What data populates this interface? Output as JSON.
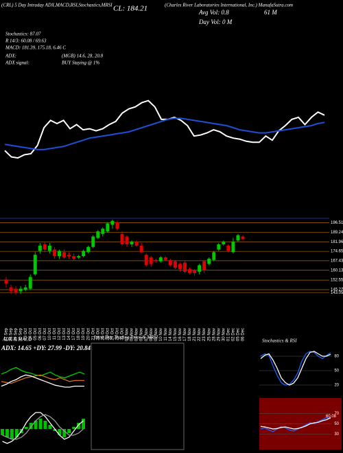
{
  "header": {
    "left": "(CRL) 5 Day Intraday ADX,MACD,RSI,Stochastics,MRSI",
    "close": "CL: 184.21",
    "company": "(Charles River Laboratories International, Inc.) ManafaSutra.com",
    "avg_vol": "Avg Vol: 0.8",
    "avg_vol_unit": "61 M",
    "day_vol": "Day Vol: 0  M",
    "stoch": "Stochastics: 87.07",
    "rsi": "R 14/3: 60.08 / 69.63",
    "macd": "MACD: 181.39, 175.18, 6.46  C",
    "adx": "ADX:",
    "mgb": "(MGB) 14.6, 28, 20.8",
    "adx_signal": "ADX  signal:",
    "signal": "BUY Staying @ 1%"
  },
  "chart_data": [
    {
      "type": "line",
      "ylim": [
        120,
        255
      ],
      "series": [
        {
          "color": "#ffffff",
          "values": [
            150,
            144,
            143,
            146,
            147,
            155,
            172,
            179,
            176,
            179,
            171,
            175,
            170,
            171,
            169,
            171,
            175,
            178,
            186,
            190,
            192,
            196,
            198,
            192,
            180,
            180,
            182,
            179,
            174,
            164,
            165,
            167,
            170,
            168,
            164,
            162,
            161,
            159,
            158,
            158,
            164,
            160,
            169,
            174,
            180,
            182,
            175,
            182,
            187,
            184
          ]
        },
        {
          "color": "#1f4fd8",
          "values": [
            156,
            155,
            154,
            153,
            152,
            151,
            151,
            152,
            153,
            154,
            156,
            158,
            160,
            162,
            163,
            164,
            165,
            166,
            167,
            168,
            170,
            172,
            174,
            176,
            178,
            180,
            181,
            181,
            180,
            179,
            178,
            177,
            176,
            175,
            174,
            172,
            170,
            169,
            168,
            167,
            167,
            168,
            169,
            170,
            171,
            172,
            173,
            174,
            176,
            177
          ]
        }
      ]
    },
    {
      "type": "candlestick",
      "ylim": [
        140,
        200
      ],
      "yticks": [
        196.51,
        189.24,
        181.96,
        174.65,
        167.43,
        160.13,
        152.55,
        145.27,
        143.05
      ],
      "up_color": "#00c800",
      "down_color": "#e00000",
      "grid_color": "#b06a00",
      "categories": [
        "27 Sep",
        "28 Sep",
        "29 Sep",
        "30 Sep",
        "03 Oct",
        "04 Oct",
        "05 Oct",
        "06 Oct",
        "07 Oct",
        "10 Oct",
        "11 Oct",
        "12 Oct",
        "13 Oct",
        "14 Oct",
        "17 Oct",
        "18 Oct",
        "19 Oct",
        "20 Oct",
        "21 Oct",
        "24 Oct",
        "25 Oct",
        "26 Oct",
        "27 Oct",
        "28 Oct",
        "31 Oct",
        "01 Nov",
        "02 Nov",
        "03 Nov",
        "04 Nov",
        "07 Nov",
        "08 Nov",
        "09 Nov",
        "10 Nov",
        "11 Nov",
        "14 Nov",
        "15 Nov",
        "16 Nov",
        "17 Nov",
        "18 Nov",
        "21 Nov",
        "22 Nov",
        "23 Nov",
        "25 Nov",
        "28 Nov",
        "29 Nov",
        "30 Nov",
        "01 Dec",
        "02 Dec",
        "05 Dec",
        "06 Dec"
      ],
      "open": [
        153,
        147,
        146,
        144,
        145,
        146,
        157,
        175,
        180,
        175,
        176,
        171,
        174,
        172,
        171,
        170,
        171,
        174,
        178,
        185,
        188,
        190,
        195,
        197,
        188,
        186,
        180,
        182,
        179,
        172,
        170,
        168,
        167,
        170,
        168,
        167,
        165,
        166,
        161,
        160,
        159,
        167,
        165,
        168,
        176,
        180,
        179,
        174,
        183,
        186
      ],
      "close": [
        150,
        144,
        143,
        146,
        147,
        155,
        172,
        179,
        176,
        179,
        171,
        175,
        170,
        171,
        169,
        171,
        175,
        178,
        186,
        190,
        192,
        196,
        198,
        192,
        180,
        180,
        182,
        179,
        174,
        164,
        165,
        167,
        170,
        168,
        164,
        162,
        161,
        159,
        158,
        158,
        164,
        160,
        169,
        174,
        180,
        182,
        175,
        182,
        187,
        184
      ],
      "high": [
        155,
        149,
        148,
        148,
        149,
        157,
        174,
        181,
        182,
        181,
        178,
        176,
        176,
        174,
        173,
        172,
        176,
        179,
        187,
        191,
        193,
        197,
        199,
        198,
        190,
        187,
        183,
        183,
        181,
        173,
        171,
        169,
        171,
        171,
        169,
        168,
        166,
        167,
        162,
        161,
        165,
        168,
        170,
        175,
        181,
        183,
        180,
        185,
        188,
        187
      ],
      "low": [
        147,
        142,
        141.5,
        142,
        144,
        145,
        156,
        173,
        174,
        173,
        169,
        169,
        169,
        169,
        168,
        169,
        170,
        173,
        177,
        184,
        186,
        189,
        192,
        191,
        179,
        178,
        178,
        178,
        173,
        163,
        163,
        166,
        166,
        167,
        163,
        161,
        159,
        158,
        157,
        156,
        157,
        158,
        164,
        167,
        175,
        179,
        174,
        173,
        182,
        183
      ]
    },
    {
      "type": "line",
      "title": "ADX  & MACD",
      "subtitle": "ADX: 14.65 +DY: 27.99 -DY: 20.84",
      "ylim": [
        0,
        50
      ],
      "series": [
        {
          "color": "#00d000",
          "values": [
            28,
            30,
            33,
            35,
            32,
            30,
            29,
            27,
            26,
            28,
            30,
            27,
            25,
            24,
            26,
            28,
            30,
            28
          ]
        },
        {
          "color": "#d07020",
          "values": [
            20,
            19,
            18,
            20,
            22,
            24,
            25,
            26,
            27,
            25,
            23,
            22,
            24,
            22,
            20,
            21,
            21,
            21
          ]
        },
        {
          "color": "#ffffff",
          "values": [
            15,
            17,
            20,
            22,
            25,
            27,
            26,
            24,
            22,
            20,
            18,
            16,
            15,
            14,
            14,
            15,
            15,
            15
          ]
        }
      ]
    },
    {
      "type": "macd",
      "ylim": [
        -10,
        10
      ],
      "bar_color": "#00c000",
      "values": [
        -3,
        -4,
        -5,
        -4,
        -2,
        1,
        3,
        4,
        5,
        4,
        2,
        -1,
        -3,
        -4,
        -2,
        1,
        3,
        5
      ],
      "series": [
        {
          "color": "#ffffff",
          "values": [
            -6,
            -7,
            -6,
            -4,
            -1,
            3,
            6,
            8,
            8,
            6,
            3,
            0,
            -3,
            -5,
            -4,
            -1,
            2,
            4
          ]
        },
        {
          "color": "#999999",
          "values": [
            -3,
            -4,
            -5,
            -5,
            -4,
            -2,
            1,
            4,
            6,
            7,
            6,
            4,
            1,
            -1,
            -3,
            -3,
            -2,
            0
          ]
        }
      ]
    },
    {
      "type": "line",
      "title": "Intra Day Trading Price & MRSI",
      "ylim": [
        0,
        100
      ],
      "series": []
    },
    {
      "type": "line",
      "title": "Stochastics & RSI",
      "ylim": [
        0,
        100
      ],
      "yticks": [
        80,
        50,
        20
      ],
      "series": [
        {
          "color": "#1f5fff",
          "values": [
            80,
            85,
            82,
            60,
            40,
            25,
            20,
            22,
            30,
            45,
            70,
            85,
            90,
            88,
            80,
            75,
            82,
            87
          ]
        },
        {
          "color": "#ffffff",
          "values": [
            75,
            82,
            85,
            72,
            55,
            35,
            25,
            20,
            24,
            35,
            55,
            75,
            88,
            90,
            85,
            80,
            80,
            84
          ]
        }
      ]
    },
    {
      "type": "line",
      "background": "#7a0000",
      "ylim": [
        0,
        100
      ],
      "yticks": [
        70,
        50,
        30
      ],
      "annotations": [
        "60.08"
      ],
      "series": [
        {
          "color": "#1f5fff",
          "values": [
            40,
            42,
            38,
            35,
            40,
            45,
            42,
            38,
            36,
            40,
            44,
            48,
            52,
            50,
            55,
            58,
            62,
            60
          ]
        },
        {
          "color": "#ffffff",
          "values": [
            45,
            44,
            42,
            40,
            41,
            43,
            44,
            42,
            40,
            41,
            43,
            46,
            50,
            52,
            53,
            56,
            58,
            62
          ]
        }
      ]
    }
  ]
}
